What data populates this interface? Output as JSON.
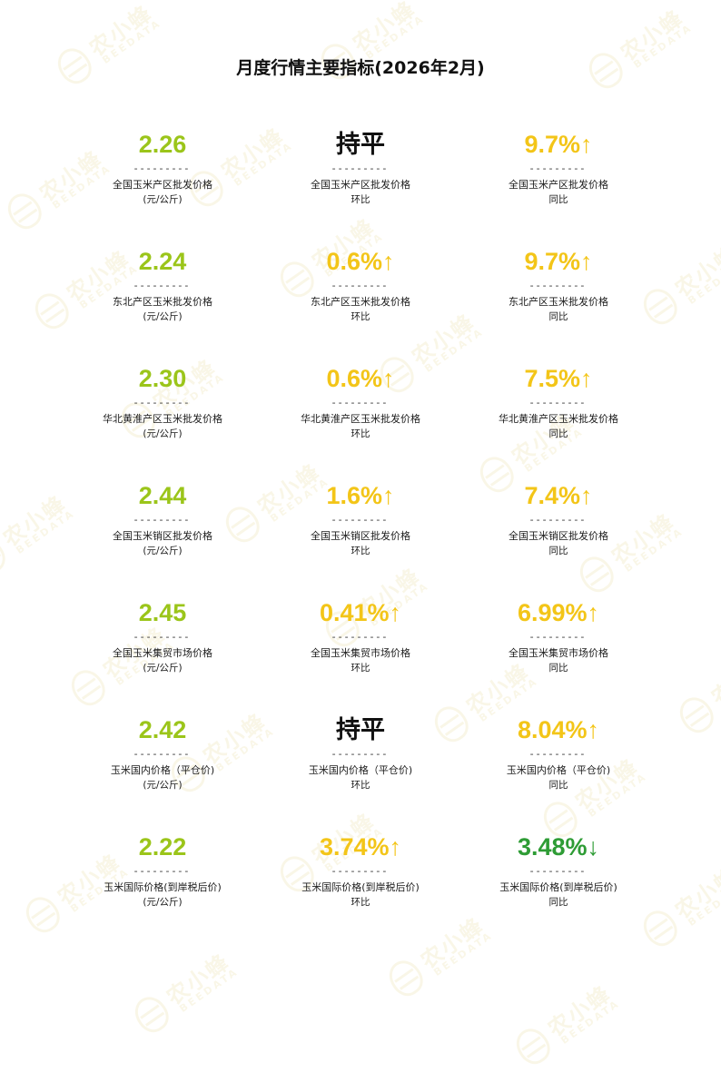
{
  "title": "月度行情主要指标(2026年2月)",
  "divider": "---------",
  "watermark": {
    "cn": "农小蜂",
    "en": "BEEDATA"
  },
  "colors": {
    "price": "#9bc51a",
    "up_change": "#f3c518",
    "down_change": "#2e9c35",
    "flat": "#111111"
  },
  "rows": [
    {
      "price": {
        "value": "2.26",
        "label": "全国玉米产区批发价格",
        "unit": "(元/公斤)"
      },
      "mom": {
        "value": "持平",
        "label": "全国玉米产区批发价格",
        "unit": "环比",
        "tone": "black"
      },
      "yoy": {
        "value": "9.7%↑",
        "label": "全国玉米产区批发价格",
        "unit": "同比",
        "tone": "yellow"
      }
    },
    {
      "price": {
        "value": "2.24",
        "label": "东北产区玉米批发价格",
        "unit": "(元/公斤)"
      },
      "mom": {
        "value": "0.6%↑",
        "label": "东北产区玉米批发价格",
        "unit": "环比",
        "tone": "yellow"
      },
      "yoy": {
        "value": "9.7%↑",
        "label": "东北产区玉米批发价格",
        "unit": "同比",
        "tone": "yellow"
      }
    },
    {
      "price": {
        "value": "2.30",
        "label": "华北黄淮产区玉米批发价格",
        "unit": "(元/公斤)"
      },
      "mom": {
        "value": "0.6%↑",
        "label": "华北黄淮产区玉米批发价格",
        "unit": "环比",
        "tone": "yellow"
      },
      "yoy": {
        "value": "7.5%↑",
        "label": "华北黄淮产区玉米批发价格",
        "unit": "同比",
        "tone": "yellow"
      }
    },
    {
      "price": {
        "value": "2.44",
        "label": "全国玉米销区批发价格",
        "unit": "(元/公斤)"
      },
      "mom": {
        "value": "1.6%↑",
        "label": "全国玉米销区批发价格",
        "unit": "环比",
        "tone": "yellow"
      },
      "yoy": {
        "value": "7.4%↑",
        "label": "全国玉米销区批发价格",
        "unit": "同比",
        "tone": "yellow"
      }
    },
    {
      "price": {
        "value": "2.45",
        "label": "全国玉米集贸市场价格",
        "unit": "(元/公斤)"
      },
      "mom": {
        "value": "0.41%↑",
        "label": "全国玉米集贸市场价格",
        "unit": "环比",
        "tone": "yellow"
      },
      "yoy": {
        "value": "6.99%↑",
        "label": "全国玉米集贸市场价格",
        "unit": "同比",
        "tone": "yellow"
      }
    },
    {
      "price": {
        "value": "2.42",
        "label": "玉米国内价格（平仓价)",
        "unit": "(元/公斤)"
      },
      "mom": {
        "value": "持平",
        "label": "玉米国内价格（平仓价)",
        "unit": "环比",
        "tone": "black"
      },
      "yoy": {
        "value": "8.04%↑",
        "label": "玉米国内价格（平仓价)",
        "unit": "同比",
        "tone": "yellow"
      }
    },
    {
      "price": {
        "value": "2.22",
        "label": "玉米国际价格(到岸税后价)",
        "unit": "(元/公斤)"
      },
      "mom": {
        "value": "3.74%↑",
        "label": "玉米国际价格(到岸税后价)",
        "unit": "环比",
        "tone": "yellow"
      },
      "yoy": {
        "value": "3.48%↓",
        "label": "玉米国际价格(到岸税后价)",
        "unit": "同比",
        "tone": "dkgreen"
      }
    }
  ]
}
